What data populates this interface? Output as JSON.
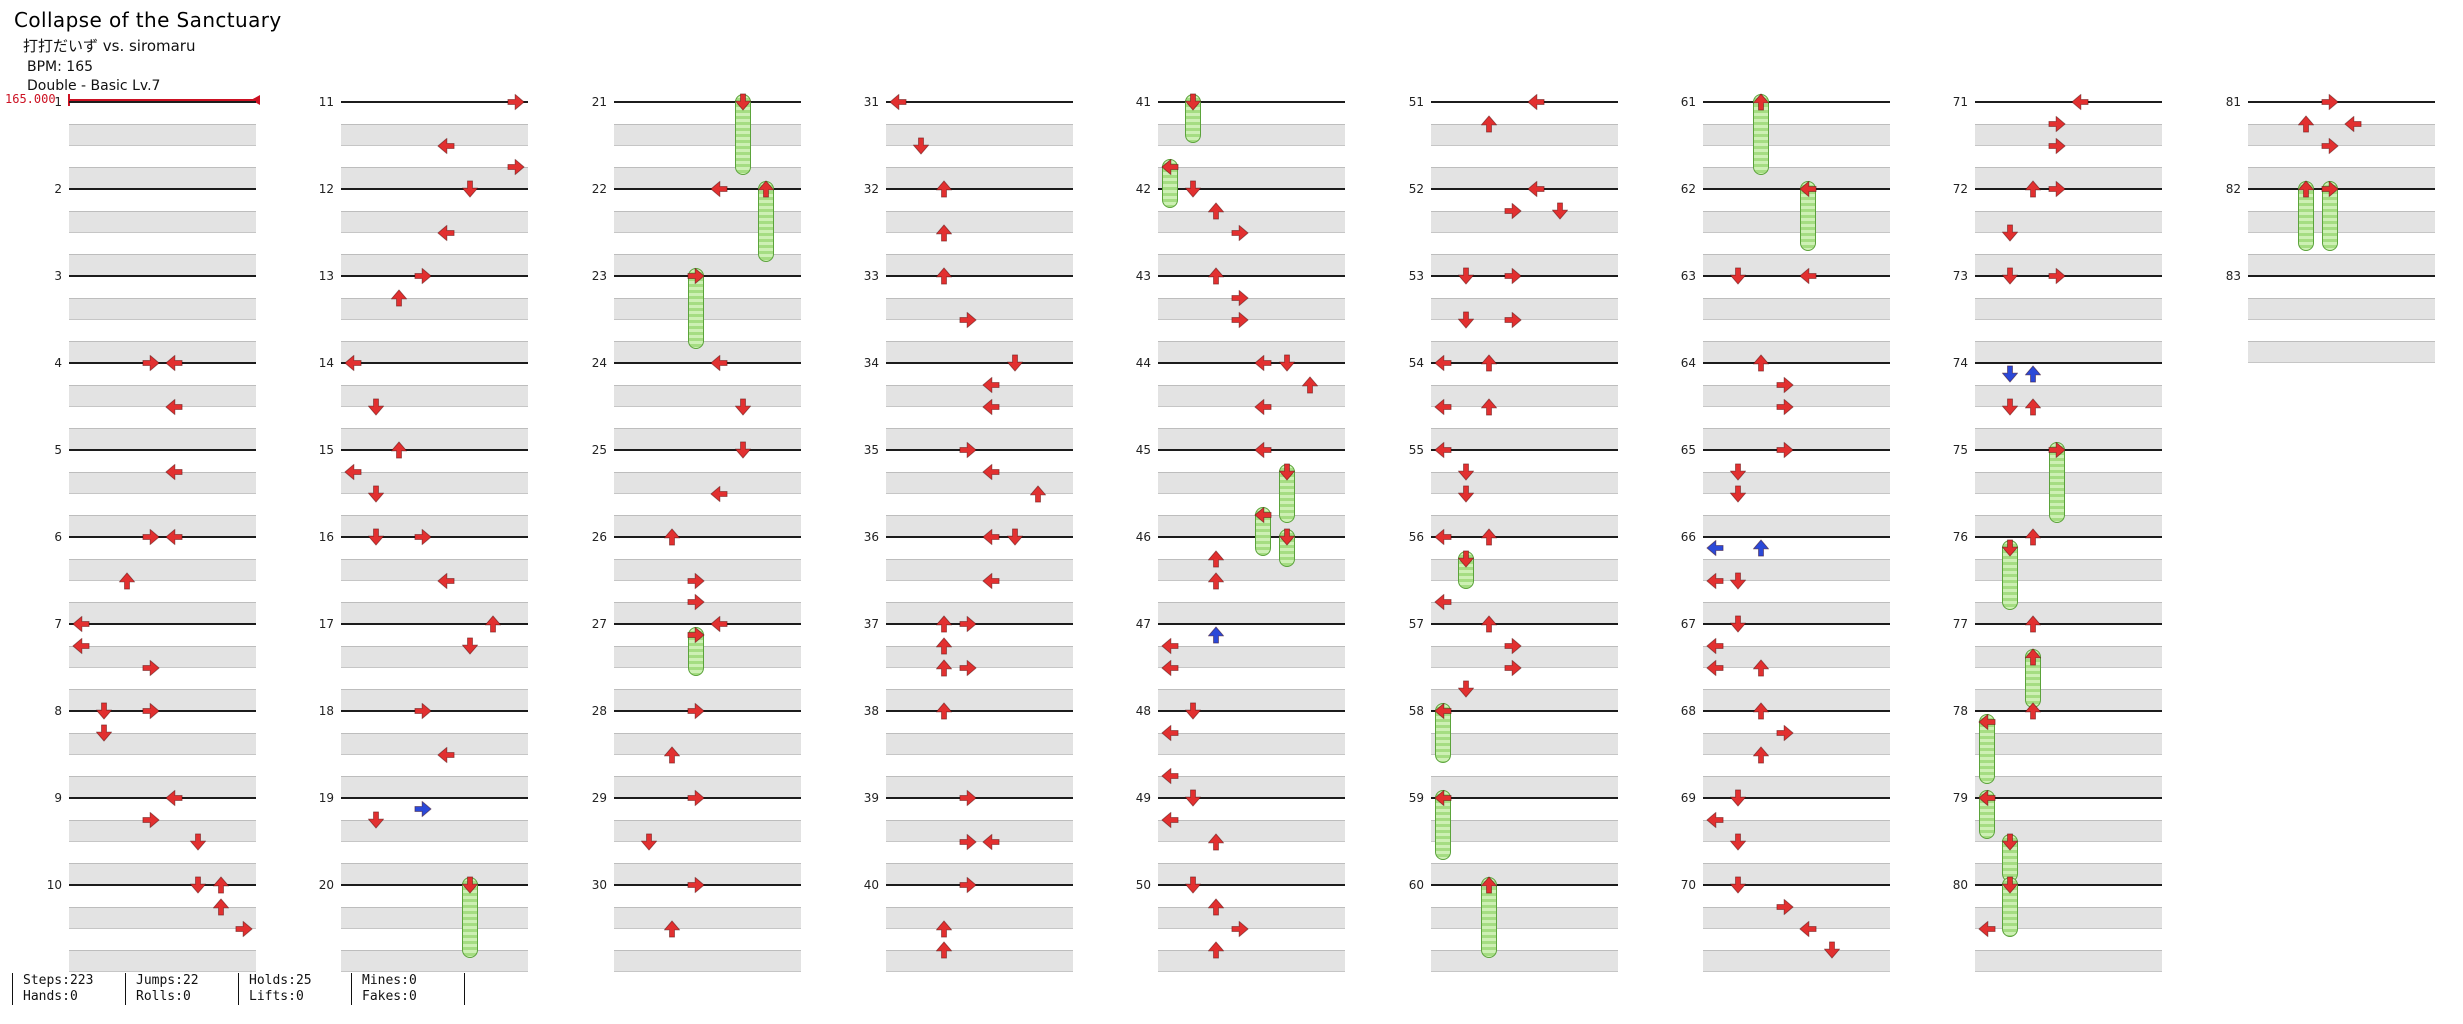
{
  "header": {
    "title": "Collapse of the Sanctuary",
    "artist": "打打だいず vs. siromaru",
    "bpm": "BPM: 165",
    "difficulty": "Double - Basic  Lv.7"
  },
  "bpm_graph": {
    "label": "165.000"
  },
  "stats": {
    "groups": [
      [
        "Steps:223",
        "Hands:0"
      ],
      [
        "Jumps:22",
        "Rolls:0"
      ],
      [
        "Holds:25",
        "Lifts:0"
      ],
      [
        "Mines:0",
        "Fakes:0"
      ]
    ]
  },
  "chart": {
    "lanes": 8,
    "beats_per_measure": 4,
    "measures_per_column": 10,
    "first_measure": 1,
    "last_measure": 83,
    "colors": {
      "tap_red": "#e23030",
      "tap_blue": "#2b49d8",
      "hold_fill": "#cdf0b4",
      "hold_stripe": "#a5dd82",
      "hold_border": "#5ba33b",
      "bpm_red": "#cc1122",
      "measure_line": "#1c1c1c",
      "row_shade": "#e3e3e3"
    },
    "note_legend": "note = [beat, column] | [beat, column, 'B'=blue 8th tap] | [beat, column, 'H'=hold, duration_beats]; columns 0-7 = P1 L,D,U,R then P2 L,D,U,R",
    "measures": [
      {
        "n": 1,
        "notes": []
      },
      {
        "n": 2,
        "notes": []
      },
      {
        "n": 3,
        "notes": []
      },
      {
        "n": 4,
        "notes": [
          [
            0,
            3
          ],
          [
            0,
            4
          ],
          [
            2,
            4
          ]
        ]
      },
      {
        "n": 5,
        "notes": [
          [
            1,
            4
          ]
        ]
      },
      {
        "n": 6,
        "notes": [
          [
            0,
            3
          ],
          [
            0,
            4
          ],
          [
            2,
            2
          ]
        ]
      },
      {
        "n": 7,
        "notes": [
          [
            0,
            0
          ],
          [
            1,
            0
          ],
          [
            2,
            3
          ]
        ]
      },
      {
        "n": 8,
        "notes": [
          [
            0,
            1
          ],
          [
            0,
            3
          ],
          [
            1,
            1
          ]
        ]
      },
      {
        "n": 9,
        "notes": [
          [
            0,
            4
          ],
          [
            1,
            3
          ],
          [
            2,
            5
          ]
        ]
      },
      {
        "n": 10,
        "notes": [
          [
            0,
            5
          ],
          [
            0,
            6
          ],
          [
            1,
            6
          ],
          [
            2,
            7
          ]
        ]
      },
      {
        "n": 11,
        "notes": [
          [
            0,
            7
          ],
          [
            2,
            4
          ],
          [
            3,
            7
          ]
        ]
      },
      {
        "n": 12,
        "notes": [
          [
            0,
            5
          ],
          [
            2,
            4
          ]
        ]
      },
      {
        "n": 13,
        "notes": [
          [
            0,
            3
          ],
          [
            1,
            2
          ]
        ]
      },
      {
        "n": 14,
        "notes": [
          [
            0,
            0
          ],
          [
            2,
            1
          ]
        ]
      },
      {
        "n": 15,
        "notes": [
          [
            0,
            2
          ],
          [
            1,
            0
          ],
          [
            2,
            1
          ]
        ]
      },
      {
        "n": 16,
        "notes": [
          [
            0,
            1
          ],
          [
            0,
            3
          ],
          [
            2,
            4
          ]
        ]
      },
      {
        "n": 17,
        "notes": [
          [
            0,
            6
          ],
          [
            1,
            5
          ]
        ]
      },
      {
        "n": 18,
        "notes": [
          [
            0,
            3
          ],
          [
            2,
            4
          ]
        ]
      },
      {
        "n": 19,
        "notes": [
          [
            0.5,
            3,
            "B"
          ],
          [
            1,
            1
          ]
        ]
      },
      {
        "n": 20,
        "notes": [
          [
            0,
            5,
            "H",
            3
          ]
        ]
      },
      {
        "n": 21,
        "notes": [
          [
            0,
            5,
            "H",
            3
          ]
        ]
      },
      {
        "n": 22,
        "notes": [
          [
            0,
            4
          ],
          [
            0,
            6,
            "H",
            3
          ]
        ]
      },
      {
        "n": 23,
        "notes": [
          [
            0,
            3,
            "H",
            3
          ]
        ]
      },
      {
        "n": 24,
        "notes": [
          [
            0,
            4
          ],
          [
            2,
            5
          ]
        ]
      },
      {
        "n": 25,
        "notes": [
          [
            0,
            5
          ],
          [
            2,
            4
          ]
        ]
      },
      {
        "n": 26,
        "notes": [
          [
            0,
            2
          ],
          [
            2,
            3
          ],
          [
            3,
            3
          ]
        ]
      },
      {
        "n": 27,
        "notes": [
          [
            0,
            4
          ],
          [
            0.5,
            3,
            "H",
            1.5
          ]
        ]
      },
      {
        "n": 28,
        "notes": [
          [
            0,
            3
          ],
          [
            2,
            2
          ]
        ]
      },
      {
        "n": 29,
        "notes": [
          [
            0,
            3
          ],
          [
            2,
            1
          ]
        ]
      },
      {
        "n": 30,
        "notes": [
          [
            0,
            3
          ],
          [
            2,
            2
          ]
        ]
      },
      {
        "n": 31,
        "notes": [
          [
            0,
            0
          ],
          [
            2,
            1
          ]
        ]
      },
      {
        "n": 32,
        "notes": [
          [
            0,
            2
          ],
          [
            2,
            2
          ]
        ]
      },
      {
        "n": 33,
        "notes": [
          [
            0,
            2
          ],
          [
            2,
            3
          ]
        ]
      },
      {
        "n": 34,
        "notes": [
          [
            0,
            5
          ],
          [
            1,
            4
          ],
          [
            2,
            4
          ]
        ]
      },
      {
        "n": 35,
        "notes": [
          [
            0,
            3
          ],
          [
            1,
            4
          ],
          [
            2,
            6
          ]
        ]
      },
      {
        "n": 36,
        "notes": [
          [
            0,
            4
          ],
          [
            0,
            5
          ],
          [
            2,
            4
          ]
        ]
      },
      {
        "n": 37,
        "notes": [
          [
            0,
            2
          ],
          [
            0,
            3
          ],
          [
            1,
            2
          ],
          [
            2,
            2
          ],
          [
            2,
            3
          ]
        ]
      },
      {
        "n": 38,
        "notes": [
          [
            0,
            2
          ]
        ]
      },
      {
        "n": 39,
        "notes": [
          [
            0,
            3
          ],
          [
            2,
            3
          ],
          [
            2,
            4
          ]
        ]
      },
      {
        "n": 40,
        "notes": [
          [
            0,
            3
          ],
          [
            2,
            2
          ],
          [
            3,
            2
          ]
        ]
      },
      {
        "n": 41,
        "notes": [
          [
            0,
            1,
            "H",
            1.5
          ],
          [
            3,
            0,
            "H",
            1.5
          ]
        ]
      },
      {
        "n": 42,
        "notes": [
          [
            0,
            1
          ],
          [
            1,
            2
          ],
          [
            2,
            3
          ]
        ]
      },
      {
        "n": 43,
        "notes": [
          [
            0,
            2
          ],
          [
            1,
            3
          ],
          [
            2,
            3
          ]
        ]
      },
      {
        "n": 44,
        "notes": [
          [
            0,
            4
          ],
          [
            0,
            5
          ],
          [
            1,
            6
          ],
          [
            2,
            4
          ]
        ]
      },
      {
        "n": 45,
        "notes": [
          [
            0,
            4
          ],
          [
            1,
            5,
            "H",
            2
          ],
          [
            3,
            4,
            "H",
            1.5
          ]
        ]
      },
      {
        "n": 46,
        "notes": [
          [
            0,
            5,
            "H",
            1
          ],
          [
            1,
            2
          ],
          [
            2,
            2
          ]
        ]
      },
      {
        "n": 47,
        "notes": [
          [
            0.5,
            2,
            "B"
          ],
          [
            1,
            0
          ],
          [
            2,
            0
          ]
        ]
      },
      {
        "n": 48,
        "notes": [
          [
            0,
            1
          ],
          [
            1,
            0
          ],
          [
            3,
            0
          ]
        ]
      },
      {
        "n": 49,
        "notes": [
          [
            0,
            1
          ],
          [
            1,
            0
          ],
          [
            2,
            2
          ]
        ]
      },
      {
        "n": 50,
        "notes": [
          [
            0,
            1
          ],
          [
            1,
            2
          ],
          [
            2,
            3
          ],
          [
            3,
            2
          ]
        ]
      },
      {
        "n": 51,
        "notes": [
          [
            0,
            4
          ],
          [
            1,
            2
          ]
        ]
      },
      {
        "n": 52,
        "notes": [
          [
            0,
            4
          ],
          [
            1,
            3
          ],
          [
            1,
            5
          ]
        ]
      },
      {
        "n": 53,
        "notes": [
          [
            0,
            1
          ],
          [
            0,
            3
          ],
          [
            2,
            1
          ],
          [
            2,
            3
          ]
        ]
      },
      {
        "n": 54,
        "notes": [
          [
            0,
            0
          ],
          [
            0,
            2
          ],
          [
            2,
            0
          ],
          [
            2,
            2
          ]
        ]
      },
      {
        "n": 55,
        "notes": [
          [
            0,
            0
          ],
          [
            1,
            1
          ],
          [
            2,
            1
          ]
        ]
      },
      {
        "n": 56,
        "notes": [
          [
            0,
            0
          ],
          [
            0,
            2
          ],
          [
            1,
            1,
            "H",
            1
          ],
          [
            3,
            0
          ]
        ]
      },
      {
        "n": 57,
        "notes": [
          [
            0,
            2
          ],
          [
            1,
            3
          ],
          [
            2,
            3
          ],
          [
            3,
            1
          ]
        ]
      },
      {
        "n": 58,
        "notes": [
          [
            0,
            0,
            "H",
            2
          ]
        ]
      },
      {
        "n": 59,
        "notes": [
          [
            0,
            0,
            "H",
            2.5
          ]
        ]
      },
      {
        "n": 60,
        "notes": [
          [
            0,
            2,
            "H",
            3
          ]
        ]
      },
      {
        "n": 61,
        "notes": [
          [
            0,
            2,
            "H",
            3
          ]
        ]
      },
      {
        "n": 62,
        "notes": [
          [
            0,
            4,
            "H",
            2.5
          ]
        ]
      },
      {
        "n": 63,
        "notes": [
          [
            0,
            1
          ],
          [
            0,
            4
          ]
        ]
      },
      {
        "n": 64,
        "notes": [
          [
            0,
            2
          ],
          [
            1,
            3
          ],
          [
            2,
            3
          ]
        ]
      },
      {
        "n": 65,
        "notes": [
          [
            0,
            3
          ],
          [
            1,
            1
          ],
          [
            2,
            1
          ]
        ]
      },
      {
        "n": 66,
        "notes": [
          [
            0.5,
            0,
            "B"
          ],
          [
            0.5,
            2,
            "B"
          ],
          [
            2,
            0
          ],
          [
            2,
            1
          ]
        ]
      },
      {
        "n": 67,
        "notes": [
          [
            0,
            1
          ],
          [
            1,
            0
          ],
          [
            2,
            0
          ],
          [
            2,
            2
          ]
        ]
      },
      {
        "n": 68,
        "notes": [
          [
            0,
            2
          ],
          [
            1,
            3
          ],
          [
            2,
            2
          ]
        ]
      },
      {
        "n": 69,
        "notes": [
          [
            0,
            1
          ],
          [
            1,
            0
          ],
          [
            2,
            1
          ]
        ]
      },
      {
        "n": 70,
        "notes": [
          [
            0,
            1
          ],
          [
            1,
            3
          ],
          [
            2,
            4
          ],
          [
            3,
            5
          ]
        ]
      },
      {
        "n": 71,
        "notes": [
          [
            0,
            4
          ],
          [
            1,
            3
          ],
          [
            2,
            3
          ]
        ]
      },
      {
        "n": 72,
        "notes": [
          [
            0,
            2
          ],
          [
            0,
            3
          ],
          [
            2,
            1
          ]
        ]
      },
      {
        "n": 73,
        "notes": [
          [
            0,
            1
          ],
          [
            0,
            3
          ]
        ]
      },
      {
        "n": 74,
        "notes": [
          [
            0.5,
            1,
            "B"
          ],
          [
            0.5,
            2,
            "B"
          ],
          [
            2,
            1
          ],
          [
            2,
            2
          ]
        ]
      },
      {
        "n": 75,
        "notes": [
          [
            0,
            3,
            "H",
            3
          ]
        ]
      },
      {
        "n": 76,
        "notes": [
          [
            0,
            2
          ],
          [
            0.5,
            1,
            "H",
            2.5
          ]
        ]
      },
      {
        "n": 77,
        "notes": [
          [
            0,
            2
          ],
          [
            1.5,
            2,
            "H",
            2
          ]
        ]
      },
      {
        "n": 78,
        "notes": [
          [
            0,
            2
          ],
          [
            0.5,
            0,
            "H",
            2.5
          ]
        ]
      },
      {
        "n": 79,
        "notes": [
          [
            0,
            0,
            "H",
            1.5
          ],
          [
            2,
            1,
            "H",
            1.5
          ]
        ]
      },
      {
        "n": 80,
        "notes": [
          [
            0,
            1,
            "H",
            2
          ],
          [
            2,
            0
          ]
        ]
      },
      {
        "n": 81,
        "notes": [
          [
            0,
            3
          ],
          [
            1,
            2
          ],
          [
            1,
            4
          ],
          [
            2,
            3
          ]
        ]
      },
      {
        "n": 82,
        "notes": [
          [
            0,
            2,
            "H",
            2.5
          ],
          [
            0,
            3,
            "H",
            2.5
          ]
        ]
      },
      {
        "n": 83,
        "notes": []
      }
    ]
  }
}
